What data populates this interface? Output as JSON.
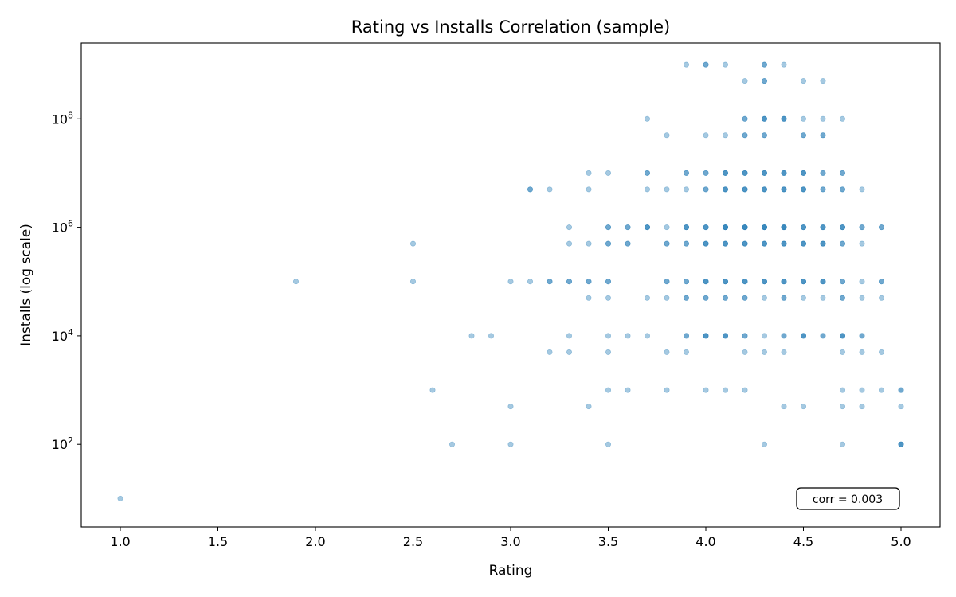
{
  "chart_data": {
    "type": "scatter",
    "title": "Rating vs Installs Correlation (sample)",
    "xlabel": "Rating",
    "ylabel": "Installs (log scale)",
    "xlim": [
      0.8,
      5.2
    ],
    "ylim": [
      3,
      2500000000
    ],
    "y_scale": "log",
    "x_ticks": [
      "1.0",
      "1.5",
      "2.0",
      "2.5",
      "3.0",
      "3.5",
      "4.0",
      "4.5",
      "5.0"
    ],
    "y_ticks": [
      {
        "base": "10",
        "exp": "2",
        "value": 100
      },
      {
        "base": "10",
        "exp": "4",
        "value": 10000
      },
      {
        "base": "10",
        "exp": "6",
        "value": 1000000
      },
      {
        "base": "10",
        "exp": "8",
        "value": 100000000
      }
    ],
    "grid": false,
    "point_color": "#1f77b4",
    "point_alpha": 0.4,
    "annotation": "corr = 0.003",
    "points": [
      [
        1.0,
        10
      ],
      [
        1.9,
        100000
      ],
      [
        2.5,
        500000
      ],
      [
        2.5,
        100000
      ],
      [
        2.6,
        1000
      ],
      [
        2.7,
        100
      ],
      [
        2.8,
        10000
      ],
      [
        2.9,
        10000
      ],
      [
        3.0,
        100000
      ],
      [
        3.0,
        500
      ],
      [
        3.0,
        100
      ],
      [
        3.1,
        5000000
      ],
      [
        3.1,
        5000000
      ],
      [
        3.1,
        100000
      ],
      [
        3.2,
        5000000
      ],
      [
        3.2,
        100000
      ],
      [
        3.2,
        100000
      ],
      [
        3.2,
        5000
      ],
      [
        3.3,
        1000000
      ],
      [
        3.3,
        500000
      ],
      [
        3.3,
        100000
      ],
      [
        3.3,
        100000
      ],
      [
        3.3,
        10000
      ],
      [
        3.3,
        5000
      ],
      [
        3.4,
        10000000
      ],
      [
        3.4,
        5000000
      ],
      [
        3.4,
        500000
      ],
      [
        3.4,
        100000
      ],
      [
        3.4,
        100000
      ],
      [
        3.4,
        50000
      ],
      [
        3.4,
        500
      ],
      [
        3.5,
        10000000
      ],
      [
        3.5,
        1000000
      ],
      [
        3.5,
        1000000
      ],
      [
        3.5,
        500000
      ],
      [
        3.5,
        500000
      ],
      [
        3.5,
        100000
      ],
      [
        3.5,
        100000
      ],
      [
        3.5,
        50000
      ],
      [
        3.5,
        10000
      ],
      [
        3.5,
        5000
      ],
      [
        3.5,
        1000
      ],
      [
        3.5,
        100
      ],
      [
        3.6,
        1000000
      ],
      [
        3.6,
        1000000
      ],
      [
        3.6,
        500000
      ],
      [
        3.6,
        500000
      ],
      [
        3.6,
        10000
      ],
      [
        3.6,
        1000
      ],
      [
        3.7,
        100000000
      ],
      [
        3.7,
        10000000
      ],
      [
        3.7,
        10000000
      ],
      [
        3.7,
        5000000
      ],
      [
        3.7,
        1000000
      ],
      [
        3.7,
        1000000
      ],
      [
        3.7,
        1000000
      ],
      [
        3.7,
        50000
      ],
      [
        3.7,
        10000
      ],
      [
        3.8,
        50000000
      ],
      [
        3.8,
        5000000
      ],
      [
        3.8,
        1000000
      ],
      [
        3.8,
        500000
      ],
      [
        3.8,
        500000
      ],
      [
        3.8,
        100000
      ],
      [
        3.8,
        100000
      ],
      [
        3.8,
        50000
      ],
      [
        3.8,
        5000
      ],
      [
        3.8,
        1000
      ],
      [
        3.9,
        1000000000
      ],
      [
        3.9,
        10000000
      ],
      [
        3.9,
        10000000
      ],
      [
        3.9,
        5000000
      ],
      [
        3.9,
        1000000
      ],
      [
        3.9,
        1000000
      ],
      [
        3.9,
        1000000
      ],
      [
        3.9,
        500000
      ],
      [
        3.9,
        500000
      ],
      [
        3.9,
        100000
      ],
      [
        3.9,
        100000
      ],
      [
        3.9,
        50000
      ],
      [
        3.9,
        50000
      ],
      [
        3.9,
        10000
      ],
      [
        3.9,
        10000
      ],
      [
        3.9,
        5000
      ],
      [
        4.0,
        1000000000
      ],
      [
        4.0,
        1000000000
      ],
      [
        4.0,
        50000000
      ],
      [
        4.0,
        10000000
      ],
      [
        4.0,
        10000000
      ],
      [
        4.0,
        5000000
      ],
      [
        4.0,
        5000000
      ],
      [
        4.0,
        1000000
      ],
      [
        4.0,
        1000000
      ],
      [
        4.0,
        1000000
      ],
      [
        4.0,
        500000
      ],
      [
        4.0,
        500000
      ],
      [
        4.0,
        500000
      ],
      [
        4.0,
        100000
      ],
      [
        4.0,
        100000
      ],
      [
        4.0,
        100000
      ],
      [
        4.0,
        50000
      ],
      [
        4.0,
        50000
      ],
      [
        4.0,
        10000
      ],
      [
        4.0,
        10000
      ],
      [
        4.0,
        10000
      ],
      [
        4.0,
        1000
      ],
      [
        4.1,
        1000000000
      ],
      [
        4.1,
        50000000
      ],
      [
        4.1,
        10000000
      ],
      [
        4.1,
        10000000
      ],
      [
        4.1,
        10000000
      ],
      [
        4.1,
        5000000
      ],
      [
        4.1,
        5000000
      ],
      [
        4.1,
        5000000
      ],
      [
        4.1,
        1000000
      ],
      [
        4.1,
        1000000
      ],
      [
        4.1,
        1000000
      ],
      [
        4.1,
        1000000
      ],
      [
        4.1,
        500000
      ],
      [
        4.1,
        500000
      ],
      [
        4.1,
        500000
      ],
      [
        4.1,
        100000
      ],
      [
        4.1,
        100000
      ],
      [
        4.1,
        100000
      ],
      [
        4.1,
        50000
      ],
      [
        4.1,
        50000
      ],
      [
        4.1,
        10000
      ],
      [
        4.1,
        10000
      ],
      [
        4.1,
        10000
      ],
      [
        4.1,
        1000
      ],
      [
        4.2,
        500000000
      ],
      [
        4.2,
        100000000
      ],
      [
        4.2,
        100000000
      ],
      [
        4.2,
        50000000
      ],
      [
        4.2,
        50000000
      ],
      [
        4.2,
        10000000
      ],
      [
        4.2,
        10000000
      ],
      [
        4.2,
        10000000
      ],
      [
        4.2,
        5000000
      ],
      [
        4.2,
        5000000
      ],
      [
        4.2,
        5000000
      ],
      [
        4.2,
        1000000
      ],
      [
        4.2,
        1000000
      ],
      [
        4.2,
        1000000
      ],
      [
        4.2,
        1000000
      ],
      [
        4.2,
        500000
      ],
      [
        4.2,
        500000
      ],
      [
        4.2,
        500000
      ],
      [
        4.2,
        100000
      ],
      [
        4.2,
        100000
      ],
      [
        4.2,
        100000
      ],
      [
        4.2,
        50000
      ],
      [
        4.2,
        50000
      ],
      [
        4.2,
        10000
      ],
      [
        4.2,
        10000
      ],
      [
        4.2,
        5000
      ],
      [
        4.2,
        1000
      ],
      [
        4.3,
        1000000000
      ],
      [
        4.3,
        1000000000
      ],
      [
        4.3,
        500000000
      ],
      [
        4.3,
        500000000
      ],
      [
        4.3,
        100000000
      ],
      [
        4.3,
        100000000
      ],
      [
        4.3,
        100000000
      ],
      [
        4.3,
        50000000
      ],
      [
        4.3,
        50000000
      ],
      [
        4.3,
        10000000
      ],
      [
        4.3,
        10000000
      ],
      [
        4.3,
        10000000
      ],
      [
        4.3,
        5000000
      ],
      [
        4.3,
        5000000
      ],
      [
        4.3,
        5000000
      ],
      [
        4.3,
        1000000
      ],
      [
        4.3,
        1000000
      ],
      [
        4.3,
        1000000
      ],
      [
        4.3,
        1000000
      ],
      [
        4.3,
        500000
      ],
      [
        4.3,
        500000
      ],
      [
        4.3,
        500000
      ],
      [
        4.3,
        100000
      ],
      [
        4.3,
        100000
      ],
      [
        4.3,
        100000
      ],
      [
        4.3,
        50000
      ],
      [
        4.3,
        10000
      ],
      [
        4.3,
        5000
      ],
      [
        4.3,
        100
      ],
      [
        4.4,
        1000000000
      ],
      [
        4.4,
        100000000
      ],
      [
        4.4,
        100000000
      ],
      [
        4.4,
        100000000
      ],
      [
        4.4,
        10000000
      ],
      [
        4.4,
        10000000
      ],
      [
        4.4,
        10000000
      ],
      [
        4.4,
        5000000
      ],
      [
        4.4,
        5000000
      ],
      [
        4.4,
        5000000
      ],
      [
        4.4,
        1000000
      ],
      [
        4.4,
        1000000
      ],
      [
        4.4,
        1000000
      ],
      [
        4.4,
        1000000
      ],
      [
        4.4,
        500000
      ],
      [
        4.4,
        500000
      ],
      [
        4.4,
        500000
      ],
      [
        4.4,
        100000
      ],
      [
        4.4,
        100000
      ],
      [
        4.4,
        100000
      ],
      [
        4.4,
        50000
      ],
      [
        4.4,
        50000
      ],
      [
        4.4,
        10000
      ],
      [
        4.4,
        10000
      ],
      [
        4.4,
        5000
      ],
      [
        4.4,
        500
      ],
      [
        4.5,
        500000000
      ],
      [
        4.5,
        100000000
      ],
      [
        4.5,
        50000000
      ],
      [
        4.5,
        50000000
      ],
      [
        4.5,
        10000000
      ],
      [
        4.5,
        10000000
      ],
      [
        4.5,
        10000000
      ],
      [
        4.5,
        5000000
      ],
      [
        4.5,
        5000000
      ],
      [
        4.5,
        5000000
      ],
      [
        4.5,
        1000000
      ],
      [
        4.5,
        1000000
      ],
      [
        4.5,
        1000000
      ],
      [
        4.5,
        500000
      ],
      [
        4.5,
        500000
      ],
      [
        4.5,
        500000
      ],
      [
        4.5,
        100000
      ],
      [
        4.5,
        100000
      ],
      [
        4.5,
        100000
      ],
      [
        4.5,
        50000
      ],
      [
        4.5,
        10000
      ],
      [
        4.5,
        10000
      ],
      [
        4.5,
        10000
      ],
      [
        4.5,
        500
      ],
      [
        4.6,
        500000000
      ],
      [
        4.6,
        100000000
      ],
      [
        4.6,
        50000000
      ],
      [
        4.6,
        50000000
      ],
      [
        4.6,
        10000000
      ],
      [
        4.6,
        10000000
      ],
      [
        4.6,
        5000000
      ],
      [
        4.6,
        5000000
      ],
      [
        4.6,
        1000000
      ],
      [
        4.6,
        1000000
      ],
      [
        4.6,
        1000000
      ],
      [
        4.6,
        500000
      ],
      [
        4.6,
        500000
      ],
      [
        4.6,
        500000
      ],
      [
        4.6,
        100000
      ],
      [
        4.6,
        100000
      ],
      [
        4.6,
        100000
      ],
      [
        4.6,
        50000
      ],
      [
        4.6,
        10000
      ],
      [
        4.6,
        10000
      ],
      [
        4.7,
        100000000
      ],
      [
        4.7,
        10000000
      ],
      [
        4.7,
        10000000
      ],
      [
        4.7,
        5000000
      ],
      [
        4.7,
        5000000
      ],
      [
        4.7,
        1000000
      ],
      [
        4.7,
        1000000
      ],
      [
        4.7,
        1000000
      ],
      [
        4.7,
        500000
      ],
      [
        4.7,
        500000
      ],
      [
        4.7,
        100000
      ],
      [
        4.7,
        100000
      ],
      [
        4.7,
        50000
      ],
      [
        4.7,
        50000
      ],
      [
        4.7,
        10000
      ],
      [
        4.7,
        10000
      ],
      [
        4.7,
        10000
      ],
      [
        4.7,
        5000
      ],
      [
        4.7,
        1000
      ],
      [
        4.7,
        500
      ],
      [
        4.7,
        100
      ],
      [
        4.8,
        5000000
      ],
      [
        4.8,
        1000000
      ],
      [
        4.8,
        1000000
      ],
      [
        4.8,
        500000
      ],
      [
        4.8,
        100000
      ],
      [
        4.8,
        50000
      ],
      [
        4.8,
        10000
      ],
      [
        4.8,
        10000
      ],
      [
        4.8,
        5000
      ],
      [
        4.8,
        1000
      ],
      [
        4.8,
        500
      ],
      [
        4.9,
        1000000
      ],
      [
        4.9,
        1000000
      ],
      [
        4.9,
        100000
      ],
      [
        4.9,
        100000
      ],
      [
        4.9,
        50000
      ],
      [
        4.9,
        5000
      ],
      [
        4.9,
        1000
      ],
      [
        5.0,
        1000
      ],
      [
        5.0,
        1000
      ],
      [
        5.0,
        500
      ],
      [
        5.0,
        100
      ],
      [
        5.0,
        100
      ],
      [
        5.0,
        100
      ]
    ]
  }
}
